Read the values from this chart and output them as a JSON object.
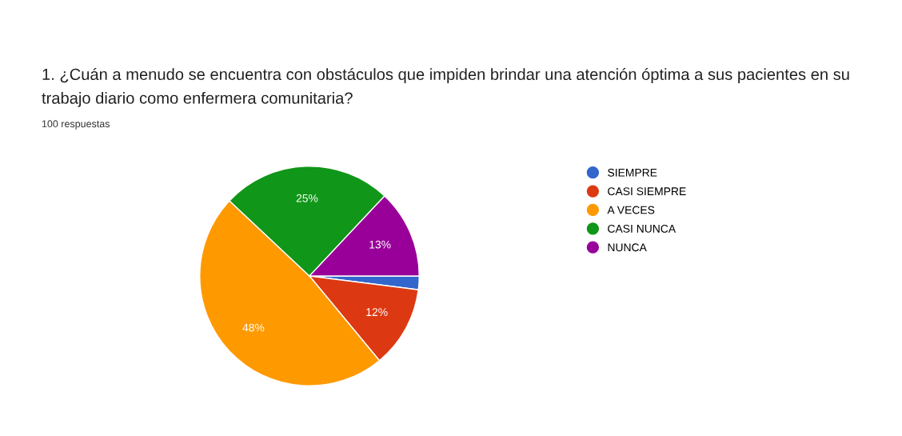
{
  "chart_data": {
    "type": "pie",
    "title": "1. ¿Cuán a menudo se encuentra con obstáculos que impiden brindar una atención óptima a sus pacientes en su trabajo diario como enfermera comunitaria?",
    "subtitle": "100 respuestas",
    "categories": [
      "SIEMPRE",
      "CASI SIEMPRE",
      "A VECES",
      "CASI NUNCA",
      "NUNCA"
    ],
    "values": [
      2,
      12,
      48,
      25,
      13
    ],
    "value_labels": [
      null,
      "12%",
      "48%",
      "25%",
      "13%"
    ],
    "colors": [
      "#3366cc",
      "#dc3912",
      "#ff9900",
      "#109618",
      "#990099"
    ],
    "legend": "right"
  }
}
